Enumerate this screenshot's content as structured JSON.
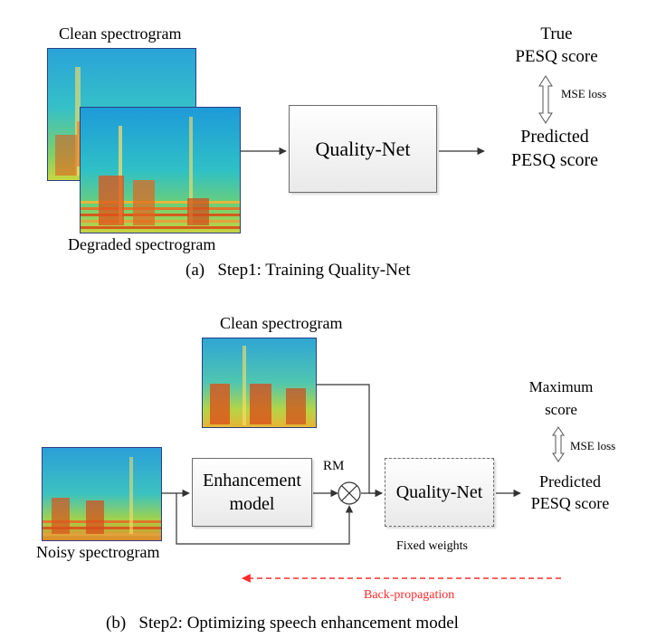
{
  "step1": {
    "clean_label": "Clean spectrogram",
    "degraded_label": "Degraded spectrogram",
    "net_label": "Quality-Net",
    "true_label_1": "True",
    "true_label_2": "PESQ score",
    "loss_label": "MSE loss",
    "pred_label_1": "Predicted",
    "pred_label_2": "PESQ score",
    "caption": "(a)   Step1: Training Quality-Net"
  },
  "step2": {
    "clean_label": "Clean spectrogram",
    "noisy_label": "Noisy spectrogram",
    "enh_label_1": "Enhancement",
    "enh_label_2": "model",
    "rm_label": "RM",
    "net_label": "Quality-Net",
    "fixed_label": "Fixed weights",
    "max_label_1": "Maximum",
    "max_label_2": "score",
    "loss_label": "MSE loss",
    "pred_label_1": "Predicted",
    "pred_label_2": "PESQ score",
    "backprop_label": "Back-propagation",
    "caption": "(b)   Step2: Optimizing speech enhancement model"
  },
  "colors": {
    "backprop": "#ff2b2b",
    "spectrogram_bg": "#1ea7c9",
    "spectrogram_energy": "#d63a12",
    "box_border": "#6b6b6b"
  }
}
